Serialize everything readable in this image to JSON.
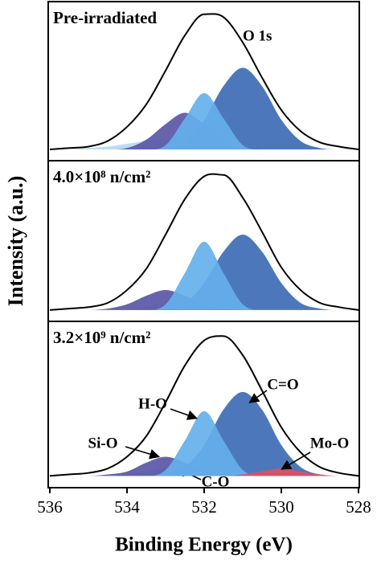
{
  "chart_data": [
    {
      "type": "area",
      "title": "Pre-irradiated",
      "annotation": "O 1s",
      "x": [
        536,
        535.5,
        535,
        534.5,
        534,
        533.5,
        533,
        532.5,
        532,
        531.5,
        531,
        530.5,
        530,
        529.5,
        529,
        528.5,
        528
      ],
      "xlim": [
        536,
        528
      ],
      "ylim": [
        -0.08,
        1.05
      ],
      "series": [
        {
          "style": "area",
          "color": "#b5d9f5",
          "values": [
            0,
            0,
            0.01,
            0.02,
            0.04,
            0.06,
            0.07,
            0.06,
            0.04,
            0.02,
            0.01,
            0,
            0,
            0,
            0,
            0,
            0
          ]
        },
        {
          "style": "area",
          "color": "#5a56a6",
          "values": [
            0,
            0,
            0,
            0,
            0.01,
            0.07,
            0.18,
            0.26,
            0.18,
            0.07,
            0.01,
            0,
            0,
            0,
            0,
            0,
            0
          ]
        },
        {
          "style": "area",
          "color": "#3d6db5",
          "values": [
            0,
            0,
            0,
            0,
            0,
            0,
            0.01,
            0.06,
            0.21,
            0.45,
            0.58,
            0.45,
            0.21,
            0.06,
            0.01,
            0,
            0
          ]
        },
        {
          "style": "area",
          "color": "#65b0ec",
          "values": [
            0,
            0,
            0,
            0,
            0,
            0,
            0.03,
            0.22,
            0.4,
            0.22,
            0.03,
            0,
            0,
            0,
            0,
            0,
            0
          ]
        },
        {
          "style": "line",
          "color": "#000000",
          "values": [
            0,
            0.01,
            0.02,
            0.06,
            0.16,
            0.32,
            0.56,
            0.81,
            0.96,
            0.94,
            0.76,
            0.51,
            0.28,
            0.13,
            0.05,
            0.02,
            0
          ]
        }
      ]
    },
    {
      "type": "area",
      "title": "4.0×10⁸ n/cm²",
      "ylabel": "Intensity (a.u.)",
      "x": [
        536,
        535.5,
        535,
        534.5,
        534,
        533.5,
        533,
        532.5,
        532,
        531.5,
        531,
        530.5,
        530,
        529.5,
        529,
        528.5,
        528
      ],
      "xlim": [
        536,
        528
      ],
      "ylim": [
        -0.08,
        1.05
      ],
      "series": [
        {
          "style": "area",
          "color": "#b5d9f5",
          "values": [
            0,
            0,
            0,
            0,
            0.01,
            0.02,
            0.04,
            0.06,
            0.04,
            0.02,
            0,
            0,
            0,
            0,
            0,
            0,
            0
          ]
        },
        {
          "style": "area",
          "color": "#5a56a6",
          "values": [
            0,
            0,
            0,
            0.01,
            0.04,
            0.1,
            0.14,
            0.1,
            0.04,
            0.01,
            0,
            0,
            0,
            0,
            0,
            0,
            0
          ]
        },
        {
          "style": "area",
          "color": "#3d6db5",
          "values": [
            0,
            0,
            0,
            0,
            0,
            0,
            0.01,
            0.05,
            0.19,
            0.41,
            0.53,
            0.41,
            0.19,
            0.05,
            0.01,
            0,
            0
          ]
        },
        {
          "style": "area",
          "color": "#65b0ec",
          "values": [
            0,
            0,
            0,
            0,
            0,
            0,
            0.04,
            0.26,
            0.48,
            0.26,
            0.04,
            0,
            0,
            0,
            0,
            0,
            0
          ]
        },
        {
          "style": "line",
          "color": "#000000",
          "values": [
            0,
            0.01,
            0.02,
            0.05,
            0.14,
            0.29,
            0.53,
            0.78,
            0.94,
            0.95,
            0.79,
            0.55,
            0.3,
            0.14,
            0.05,
            0.02,
            0
          ]
        }
      ]
    },
    {
      "type": "area",
      "title": "3.2×10⁹ n/cm²",
      "xlabel": "Binding Energy (eV)",
      "x": [
        536,
        535.5,
        535,
        534.5,
        534,
        533.5,
        533,
        532.5,
        532,
        531.5,
        531,
        530.5,
        530,
        529.5,
        529,
        528.5,
        528
      ],
      "xlim": [
        536,
        528
      ],
      "ylim": [
        -0.08,
        1.05
      ],
      "xticks": [
        536,
        534,
        532,
        530,
        528
      ],
      "series": [
        {
          "name": "C-O",
          "style": "area",
          "color": "#b5d9f5",
          "values": [
            0,
            0,
            0,
            0,
            0.01,
            0.03,
            0.06,
            0.09,
            0.06,
            0.03,
            0.01,
            0,
            0,
            0,
            0,
            0,
            0
          ]
        },
        {
          "name": "Si-O",
          "style": "area",
          "color": "#5a56a6",
          "values": [
            0,
            0,
            0,
            0.01,
            0.03,
            0.09,
            0.13,
            0.09,
            0.03,
            0.01,
            0,
            0,
            0,
            0,
            0,
            0,
            0
          ]
        },
        {
          "name": "C=O",
          "style": "area",
          "color": "#3d6db5",
          "values": [
            0,
            0,
            0,
            0,
            0,
            0,
            0.01,
            0.06,
            0.21,
            0.45,
            0.57,
            0.45,
            0.21,
            0.06,
            0.01,
            0,
            0
          ]
        },
        {
          "name": "H-O",
          "style": "area",
          "color": "#65b0ec",
          "values": [
            0,
            0,
            0,
            0,
            0,
            0,
            0.04,
            0.24,
            0.44,
            0.24,
            0.04,
            0,
            0,
            0,
            0,
            0,
            0
          ]
        },
        {
          "name": "Mo-O",
          "style": "area",
          "color": "#e05060",
          "values": [
            0,
            0,
            0,
            0,
            0,
            0,
            0,
            0,
            0,
            0,
            0.01,
            0.03,
            0.05,
            0.03,
            0.01,
            0,
            0
          ]
        },
        {
          "style": "line",
          "color": "#000000",
          "values": [
            0,
            0.01,
            0.02,
            0.05,
            0.13,
            0.27,
            0.5,
            0.75,
            0.92,
            0.95,
            0.82,
            0.58,
            0.33,
            0.16,
            0.06,
            0.02,
            0
          ]
        }
      ]
    }
  ]
}
